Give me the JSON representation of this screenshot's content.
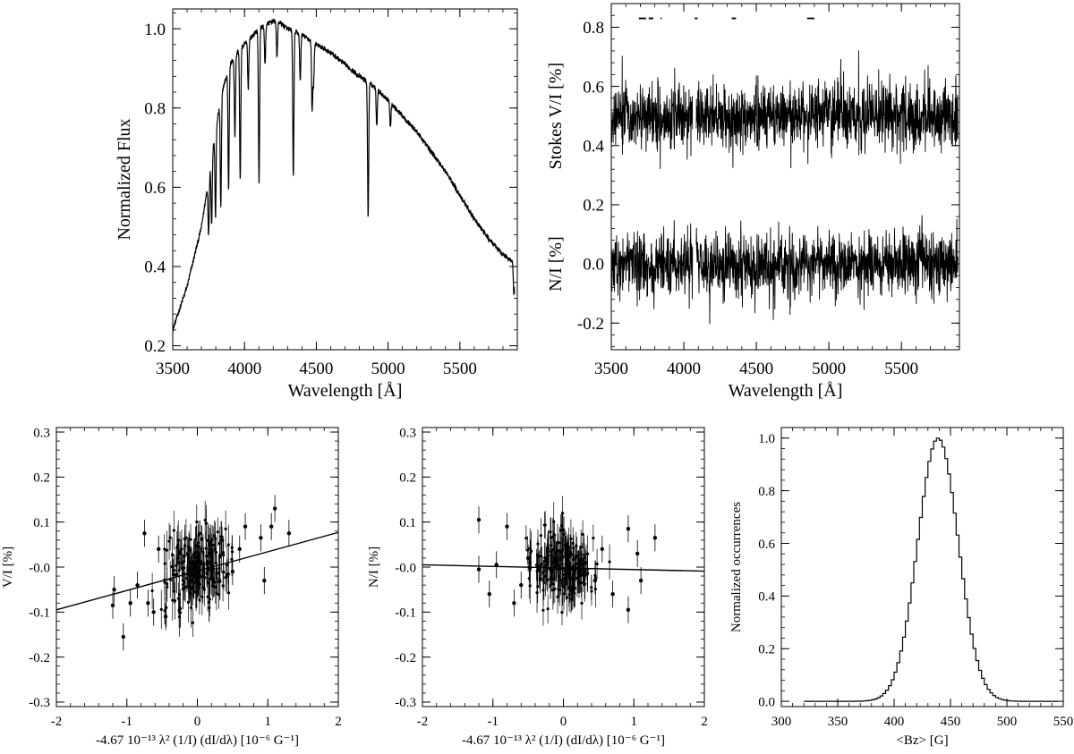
{
  "chart_data": [
    {
      "id": "flux",
      "type": "line",
      "xlabel": "Wavelength [Å]",
      "ylabel": "Normalized Flux",
      "xlim": [
        3500,
        5900
      ],
      "ylim": [
        0.19,
        1.05
      ],
      "xticks": [
        3500,
        4000,
        4500,
        5000,
        5500
      ],
      "yticks": [
        0.2,
        0.4,
        0.6,
        0.8,
        1.0
      ],
      "ytick_labels": [
        "0.2",
        "0.4",
        "0.6",
        "0.8",
        "1.0"
      ],
      "grid": false,
      "continuum": {
        "x": [
          3500,
          3600,
          3700,
          3750,
          3800,
          3850,
          3900,
          3950,
          4000,
          4050,
          4100,
          4150,
          4200,
          4250,
          4300,
          4400,
          4500,
          4600,
          4700,
          4800,
          4900,
          5000,
          5100,
          5200,
          5300,
          5400,
          5500,
          5600,
          5700,
          5800,
          5880
        ],
        "y": [
          0.24,
          0.35,
          0.5,
          0.62,
          0.75,
          0.85,
          0.91,
          0.94,
          0.96,
          0.98,
          1.0,
          1.01,
          1.02,
          1.015,
          1.0,
          0.985,
          0.96,
          0.94,
          0.91,
          0.88,
          0.855,
          0.82,
          0.78,
          0.74,
          0.69,
          0.64,
          0.58,
          0.52,
          0.47,
          0.43,
          0.41
        ]
      },
      "absorption_lines": [
        {
          "x": 3750,
          "depth": 0.14
        },
        {
          "x": 3771,
          "depth": 0.17
        },
        {
          "x": 3798,
          "depth": 0.22
        },
        {
          "x": 3835,
          "depth": 0.27
        },
        {
          "x": 3889,
          "depth": 0.3
        },
        {
          "x": 3933,
          "depth": 0.2
        },
        {
          "x": 3970,
          "depth": 0.33
        },
        {
          "x": 4026,
          "depth": 0.12
        },
        {
          "x": 4101,
          "depth": 0.39
        },
        {
          "x": 4143,
          "depth": 0.1
        },
        {
          "x": 4226,
          "depth": 0.09
        },
        {
          "x": 4340,
          "depth": 0.37
        },
        {
          "x": 4388,
          "depth": 0.12
        },
        {
          "x": 4471,
          "depth": 0.17
        },
        {
          "x": 4481,
          "depth": 0.1
        },
        {
          "x": 4861,
          "depth": 0.34
        },
        {
          "x": 4921,
          "depth": 0.09
        },
        {
          "x": 5016,
          "depth": 0.06
        },
        {
          "x": 5876,
          "depth": 0.08
        }
      ]
    },
    {
      "id": "stokes",
      "type": "line",
      "xlabel": "Wavelength [Å]",
      "ylabel_upper": "Stokes V/I [%]",
      "ylabel_lower": "N/I [%]",
      "xlim": [
        3500,
        5900
      ],
      "ylim": [
        -0.29,
        0.88
      ],
      "xticks": [
        3500,
        4000,
        4500,
        5000,
        5500
      ],
      "yticks": [
        -0.2,
        0.0,
        0.2,
        0.4,
        0.6,
        0.8
      ],
      "ytick_labels": [
        "-0.2",
        "0.0",
        "0.2",
        "0.4",
        "0.6",
        "0.8"
      ],
      "grid": false,
      "series": [
        {
          "offset": 0.5,
          "noise": 0.055
        },
        {
          "offset": 0.0,
          "noise": 0.055
        }
      ],
      "gap": [
        4060,
        4085
      ],
      "line_masks": [
        [
          3690,
          3790
        ],
        [
          3840,
          3848
        ],
        [
          4075,
          4095
        ],
        [
          4330,
          4360
        ],
        [
          4850,
          4900
        ]
      ],
      "mask_y": 0.83
    },
    {
      "id": "vi-fit",
      "type": "scatter",
      "xlabel": "-4.67 10⁻¹³ λ² (1/I) (dI/dλ) [10⁻⁶ G⁻¹]",
      "ylabel": "V/I [%]",
      "xlim": [
        -2,
        2
      ],
      "ylim": [
        -0.31,
        0.31
      ],
      "xticks": [
        -2,
        -1,
        0,
        1,
        2
      ],
      "xtick_labels": [
        "-2",
        "-1",
        "0",
        "1",
        "2"
      ],
      "yticks": [
        -0.3,
        -0.2,
        -0.1,
        0.0,
        0.1,
        0.2,
        0.3
      ],
      "ytick_labels": [
        "-0.3",
        "-0.2",
        "-0.1",
        "-0.0",
        "0.1",
        "0.2",
        "0.3"
      ],
      "grid": false,
      "fit_line": {
        "x": [
          -2,
          2
        ],
        "y": [
          -0.095,
          0.077
        ]
      },
      "points": [
        {
          "x": -1.2,
          "y": -0.085,
          "err": 0.03
        },
        {
          "x": -1.18,
          "y": -0.05,
          "err": 0.03
        },
        {
          "x": -1.05,
          "y": -0.155,
          "err": 0.03
        },
        {
          "x": -0.95,
          "y": -0.08,
          "err": 0.03
        },
        {
          "x": -0.85,
          "y": -0.04,
          "err": 0.03
        },
        {
          "x": -0.75,
          "y": 0.075,
          "err": 0.03
        },
        {
          "x": -0.7,
          "y": -0.08,
          "err": 0.03
        },
        {
          "x": -0.62,
          "y": -0.1,
          "err": 0.03
        },
        {
          "x": -0.55,
          "y": 0.04,
          "err": 0.03
        },
        {
          "x": -0.45,
          "y": -0.11,
          "err": 0.03
        },
        {
          "x": 0.35,
          "y": 0.06,
          "err": 0.03
        },
        {
          "x": 0.5,
          "y": -0.01,
          "err": 0.03
        },
        {
          "x": 0.6,
          "y": 0.04,
          "err": 0.03
        },
        {
          "x": 0.68,
          "y": 0.09,
          "err": 0.03
        },
        {
          "x": 0.9,
          "y": 0.065,
          "err": 0.03
        },
        {
          "x": 0.95,
          "y": -0.03,
          "err": 0.03
        },
        {
          "x": 1.05,
          "y": 0.09,
          "err": 0.03
        },
        {
          "x": 1.1,
          "y": 0.13,
          "err": 0.03
        },
        {
          "x": 1.3,
          "y": 0.075,
          "err": 0.03
        }
      ],
      "cloud": {
        "x_sd": 0.23,
        "y_center": 0.0,
        "y_sd": 0.045,
        "n": 220,
        "slope": 0.043,
        "err": 0.035
      }
    },
    {
      "id": "ni-fit",
      "type": "scatter",
      "xlabel": "-4.67 10⁻¹³ λ² (1/I) (dI/dλ) [10⁻⁶ G⁻¹]",
      "ylabel": "N/I [%]",
      "xlim": [
        -2,
        2
      ],
      "ylim": [
        -0.31,
        0.31
      ],
      "xticks": [
        -2,
        -1,
        0,
        1,
        2
      ],
      "xtick_labels": [
        "-2",
        "-1",
        "0",
        "1",
        "2"
      ],
      "yticks": [
        -0.3,
        -0.2,
        -0.1,
        0.0,
        0.1,
        0.2,
        0.3
      ],
      "ytick_labels": [
        "-0.3",
        "-0.2",
        "-0.1",
        "-0.0",
        "0.1",
        "0.2",
        "0.3"
      ],
      "grid": false,
      "fit_line": {
        "x": [
          -2,
          2
        ],
        "y": [
          0.005,
          -0.009
        ]
      },
      "points": [
        {
          "x": -1.2,
          "y": 0.105,
          "err": 0.03
        },
        {
          "x": -1.2,
          "y": -0.005,
          "err": 0.03
        },
        {
          "x": -1.05,
          "y": -0.06,
          "err": 0.03
        },
        {
          "x": -0.95,
          "y": 0.005,
          "err": 0.03
        },
        {
          "x": -0.8,
          "y": 0.09,
          "err": 0.03
        },
        {
          "x": -0.7,
          "y": -0.08,
          "err": 0.03
        },
        {
          "x": -0.6,
          "y": -0.04,
          "err": 0.03
        },
        {
          "x": -0.5,
          "y": 0.02,
          "err": 0.03
        },
        {
          "x": 0.45,
          "y": -0.03,
          "err": 0.03
        },
        {
          "x": 0.55,
          "y": 0.04,
          "err": 0.03
        },
        {
          "x": 0.7,
          "y": -0.06,
          "err": 0.03
        },
        {
          "x": 0.92,
          "y": 0.085,
          "err": 0.03
        },
        {
          "x": 0.92,
          "y": -0.095,
          "err": 0.03
        },
        {
          "x": 1.05,
          "y": 0.03,
          "err": 0.03
        },
        {
          "x": 1.1,
          "y": -0.03,
          "err": 0.03
        },
        {
          "x": 1.3,
          "y": 0.065,
          "err": 0.03
        }
      ],
      "cloud": {
        "x_sd": 0.23,
        "y_center": 0.0,
        "y_sd": 0.045,
        "n": 220,
        "slope": -0.004,
        "err": 0.035
      }
    },
    {
      "id": "bz-hist",
      "type": "area",
      "xlabel": "<Bz> [G]",
      "ylabel": "Normalized occurrences",
      "xlim": [
        300,
        550
      ],
      "ylim": [
        -0.02,
        1.04
      ],
      "xticks": [
        300,
        350,
        400,
        450,
        500,
        550
      ],
      "yticks": [
        0.0,
        0.2,
        0.4,
        0.6,
        0.8,
        1.0
      ],
      "ytick_labels": [
        "0.0",
        "0.2",
        "0.4",
        "0.6",
        "0.8",
        "1.0"
      ],
      "grid": false,
      "histogram": {
        "mean": 439,
        "sigma": 18,
        "bin_width": 2.5,
        "range": [
          320,
          545
        ]
      }
    }
  ]
}
